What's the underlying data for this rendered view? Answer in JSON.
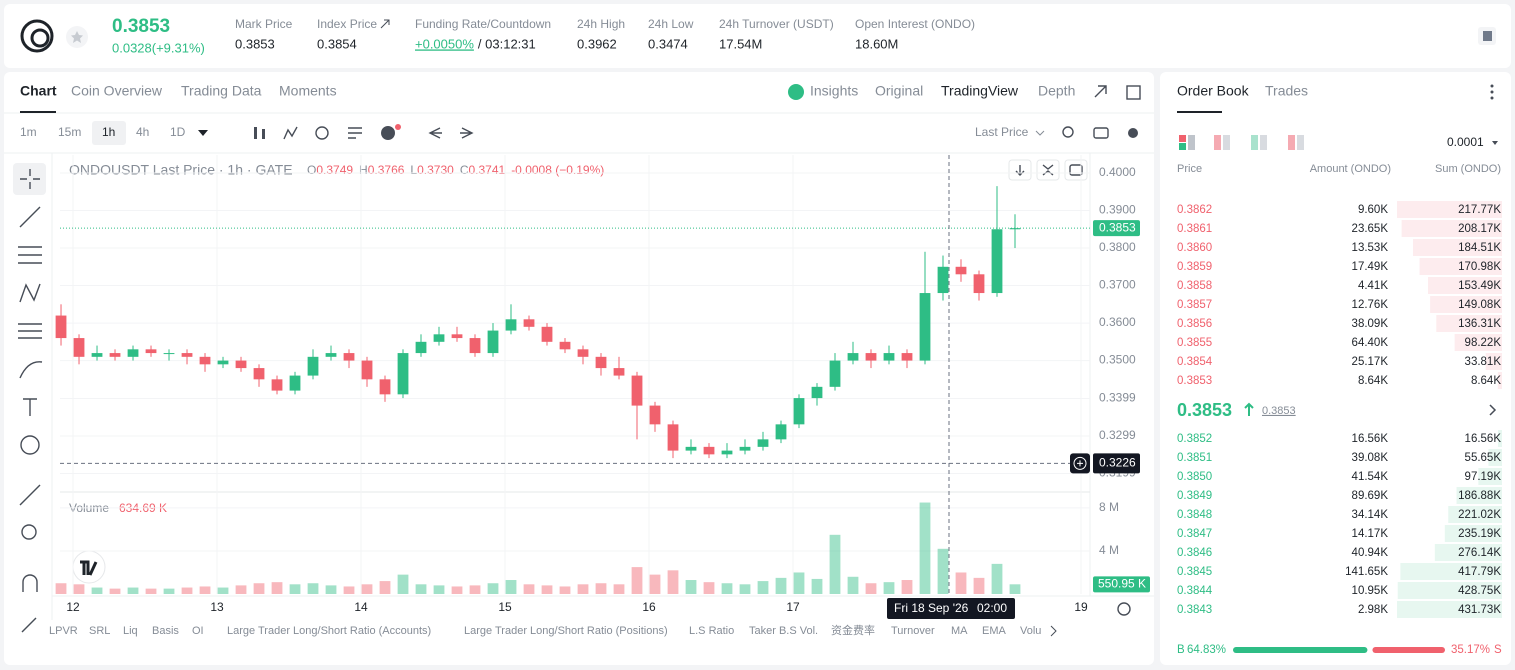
{
  "header": {
    "price": "0.3853",
    "change": "0.0328(+9.31%)",
    "stats": [
      {
        "label": "Mark Price",
        "value": "0.3853"
      },
      {
        "label": "Index Price",
        "value": "0.3854"
      },
      {
        "label": "Funding Rate/Countdown",
        "value": "+0.0050%",
        "extra": "/ 03:12:31"
      },
      {
        "label": "24h High",
        "value": "0.3962"
      },
      {
        "label": "24h Low",
        "value": "0.3474"
      },
      {
        "label": "24h Turnover (USDT)",
        "value": "17.54M"
      },
      {
        "label": "Open Interest (ONDO)",
        "value": "18.60M"
      }
    ]
  },
  "tabs": [
    "Chart",
    "Coin Overview",
    "Trading Data",
    "Moments"
  ],
  "views": [
    "Insights",
    "Original",
    "TradingView",
    "Depth"
  ],
  "intervals": [
    "1m",
    "15m",
    "1h",
    "4h",
    "1D"
  ],
  "price_source": "Last Price",
  "indicators": [
    "LPVR",
    "SRL",
    "Liq",
    "Basis",
    "OI",
    "Large Trader Long/Short Ratio (Accounts)",
    "Large Trader Long/Short Ratio (Positions)",
    "L.S Ratio",
    "Taker B.S Vol.",
    "资金费率",
    "Turnover",
    "MA",
    "EMA",
    "Volu"
  ],
  "chart_data": {
    "type": "candlestick",
    "title": "ONDOUSDT Last Price · 1h · GATE",
    "legend": [
      {
        "key": "O",
        "value": "0.3749"
      },
      {
        "key": "H",
        "value": "0.3766"
      },
      {
        "key": "L",
        "value": "0.3730"
      },
      {
        "key": "C",
        "value": "0.3741"
      },
      {
        "key": "",
        "value": "-0.0008 (−0.19%)"
      }
    ],
    "up_color": "#2ebd85",
    "down_color": "#f0616d",
    "x": [
      -2,
      1,
      4,
      7,
      10,
      13,
      16,
      19,
      22,
      25,
      28,
      31,
      34,
      37,
      40,
      43,
      46,
      49,
      52,
      55,
      58,
      61,
      64,
      67,
      70,
      73,
      76,
      79,
      82,
      85,
      88,
      91,
      94,
      97,
      100,
      103,
      106,
      109,
      112,
      115,
      118,
      121,
      124,
      127,
      130,
      133,
      136,
      139,
      142,
      145,
      148,
      151,
      154,
      157
    ],
    "open": [
      0.362,
      0.356,
      0.351,
      0.352,
      0.351,
      0.353,
      0.352,
      0.352,
      0.351,
      0.349,
      0.35,
      0.348,
      0.345,
      0.342,
      0.346,
      0.351,
      0.352,
      0.35,
      0.345,
      0.341,
      0.352,
      0.355,
      0.357,
      0.356,
      0.352,
      0.358,
      0.361,
      0.359,
      0.355,
      0.353,
      0.351,
      0.348,
      0.346,
      0.338,
      0.333,
      0.326,
      0.327,
      0.325,
      0.326,
      0.327,
      0.329,
      0.333,
      0.34,
      0.343,
      0.35,
      0.352,
      0.35,
      0.352,
      0.35,
      0.368,
      0.375,
      0.373,
      0.368,
      0.385
    ],
    "high": [
      0.365,
      0.357,
      0.354,
      0.353,
      0.354,
      0.354,
      0.353,
      0.353,
      0.352,
      0.351,
      0.351,
      0.349,
      0.346,
      0.347,
      0.353,
      0.354,
      0.353,
      0.351,
      0.346,
      0.353,
      0.357,
      0.359,
      0.359,
      0.357,
      0.36,
      0.365,
      0.362,
      0.36,
      0.356,
      0.354,
      0.352,
      0.351,
      0.347,
      0.339,
      0.334,
      0.329,
      0.328,
      0.328,
      0.329,
      0.331,
      0.334,
      0.341,
      0.344,
      0.352,
      0.355,
      0.353,
      0.354,
      0.353,
      0.379,
      0.378,
      0.377,
      0.374,
      0.3965,
      0.389
    ],
    "low": [
      0.354,
      0.349,
      0.35,
      0.35,
      0.35,
      0.351,
      0.35,
      0.349,
      0.347,
      0.348,
      0.347,
      0.343,
      0.341,
      0.341,
      0.345,
      0.35,
      0.348,
      0.343,
      0.339,
      0.34,
      0.351,
      0.354,
      0.355,
      0.351,
      0.351,
      0.357,
      0.358,
      0.354,
      0.352,
      0.349,
      0.346,
      0.345,
      0.329,
      0.331,
      0.324,
      0.325,
      0.324,
      0.324,
      0.325,
      0.326,
      0.328,
      0.332,
      0.338,
      0.342,
      0.349,
      0.348,
      0.349,
      0.348,
      0.349,
      0.366,
      0.371,
      0.366,
      0.367,
      0.38
    ],
    "close": [
      0.356,
      0.351,
      0.352,
      0.351,
      0.353,
      0.352,
      0.352,
      0.351,
      0.349,
      0.35,
      0.348,
      0.345,
      0.342,
      0.346,
      0.351,
      0.352,
      0.35,
      0.345,
      0.341,
      0.352,
      0.355,
      0.357,
      0.356,
      0.352,
      0.358,
      0.361,
      0.359,
      0.355,
      0.353,
      0.351,
      0.348,
      0.346,
      0.338,
      0.333,
      0.326,
      0.327,
      0.325,
      0.326,
      0.327,
      0.329,
      0.333,
      0.34,
      0.343,
      0.35,
      0.352,
      0.35,
      0.352,
      0.35,
      0.368,
      0.375,
      0.373,
      0.368,
      0.385,
      0.3853
    ],
    "volume": [
      1.0,
      0.9,
      0.6,
      0.5,
      0.6,
      0.5,
      0.5,
      0.6,
      0.7,
      0.6,
      0.8,
      1.0,
      1.1,
      0.9,
      1.0,
      0.8,
      0.7,
      0.9,
      1.2,
      1.8,
      0.9,
      0.8,
      0.7,
      0.8,
      1.0,
      1.3,
      0.9,
      0.8,
      0.7,
      0.9,
      1.0,
      0.9,
      2.5,
      1.8,
      2.2,
      1.3,
      1.1,
      1.0,
      0.9,
      1.2,
      1.5,
      2.0,
      1.4,
      5.5,
      1.6,
      1.0,
      1.1,
      1.3,
      8.5,
      4.2,
      2.0,
      1.5,
      2.8,
      0.9
    ],
    "xlim": [
      -2.17,
      169.5
    ],
    "xticks": [
      {
        "value": 0,
        "label": "12"
      },
      {
        "value": 24,
        "label": "13"
      },
      {
        "value": 48,
        "label": "14"
      },
      {
        "value": 72,
        "label": "15"
      },
      {
        "value": 96,
        "label": "16"
      },
      {
        "value": 120,
        "label": "17"
      },
      {
        "value": 168,
        "label": "19"
      }
    ],
    "ylim": [
      0.3155,
      0.4048
    ],
    "yticks": [
      {
        "value": 0.4,
        "label": "0.4000"
      },
      {
        "value": 0.39,
        "label": "0.3900"
      },
      {
        "value": 0.38,
        "label": "0.3800"
      },
      {
        "value": 0.37,
        "label": "0.3700"
      },
      {
        "value": 0.36,
        "label": "0.3600"
      },
      {
        "value": 0.35,
        "label": "0.3500"
      },
      0.3399,
      0.3299,
      0.3199
    ],
    "volume_ylim": [
      0,
      9.2
    ],
    "volume_yticks": [
      {
        "value": 4,
        "label": "4 M"
      },
      {
        "value": 8,
        "label": "8 M"
      }
    ],
    "volume_title": "Volume",
    "volume_value": "634.69 K",
    "last_volume": "550.95 K",
    "last_price": {
      "value": 0.3853,
      "label": "0.3853"
    },
    "crosshair": {
      "y": {
        "value": 0.3226,
        "label": "0.3226"
      },
      "x": 146,
      "date_label": "Fri 18 Sep '26",
      "time_label": "02:00"
    },
    "grid": true
  },
  "order_book": {
    "tabs": [
      "Order Book",
      "Trades"
    ],
    "tick_size": "0.0001",
    "columns": [
      "Price",
      "Amount (ONDO)",
      "Sum (ONDO)"
    ],
    "asks": {
      "price": [
        0.3862,
        0.3861,
        0.386,
        0.3859,
        0.3858,
        0.3857,
        0.3856,
        0.3855,
        0.3854,
        0.3853
      ],
      "price_labels": [
        "0.3862",
        "0.3861",
        "0.3860",
        "0.3859",
        "0.3858",
        "0.3857",
        "0.3856",
        "0.3855",
        "0.3854",
        "0.3853"
      ],
      "amount": [
        9.6,
        23.65,
        13.53,
        17.49,
        4.41,
        12.76,
        38.09,
        64.4,
        25.17,
        8.64
      ],
      "amount_labels": [
        "9.60K",
        "23.65K",
        "13.53K",
        "17.49K",
        "4.41K",
        "12.76K",
        "38.09K",
        "64.40K",
        "25.17K",
        "8.64K"
      ],
      "sum": [
        217.77,
        208.17,
        184.51,
        170.98,
        153.49,
        149.08,
        136.31,
        98.22,
        33.81,
        8.64
      ],
      "sum_labels": [
        "217.77K",
        "208.17K",
        "184.51K",
        "170.98K",
        "153.49K",
        "149.08K",
        "136.31K",
        "98.22K",
        "33.81K",
        "8.64K"
      ]
    },
    "mid_price": "0.3853",
    "mark_price": "0.3853",
    "bids": {
      "price": [
        0.3852,
        0.3851,
        0.385,
        0.3849,
        0.3848,
        0.3847,
        0.3846,
        0.3845,
        0.3844,
        0.3843
      ],
      "price_labels": [
        "0.3852",
        "0.3851",
        "0.3850",
        "0.3849",
        "0.3848",
        "0.3847",
        "0.3846",
        "0.3845",
        "0.3844",
        "0.3843"
      ],
      "amount": [
        16.56,
        39.08,
        41.54,
        89.69,
        34.14,
        14.17,
        40.94,
        141.65,
        10.95,
        2.98
      ],
      "amount_labels": [
        "16.56K",
        "39.08K",
        "41.54K",
        "89.69K",
        "34.14K",
        "14.17K",
        "40.94K",
        "141.65K",
        "10.95K",
        "2.98K"
      ],
      "sum": [
        16.56,
        55.65,
        97.19,
        186.88,
        221.02,
        235.19,
        276.14,
        417.79,
        428.75,
        431.73
      ],
      "sum_labels": [
        "16.56K",
        "55.65K",
        "97.19K",
        "186.88K",
        "221.02K",
        "235.19K",
        "276.14K",
        "417.79K",
        "428.75K",
        "431.73K"
      ]
    },
    "buy": {
      "key": "B",
      "value": 64.83,
      "label": "64.83%"
    },
    "sell": {
      "key": "S",
      "value": 35.17,
      "label": "35.17%"
    }
  }
}
